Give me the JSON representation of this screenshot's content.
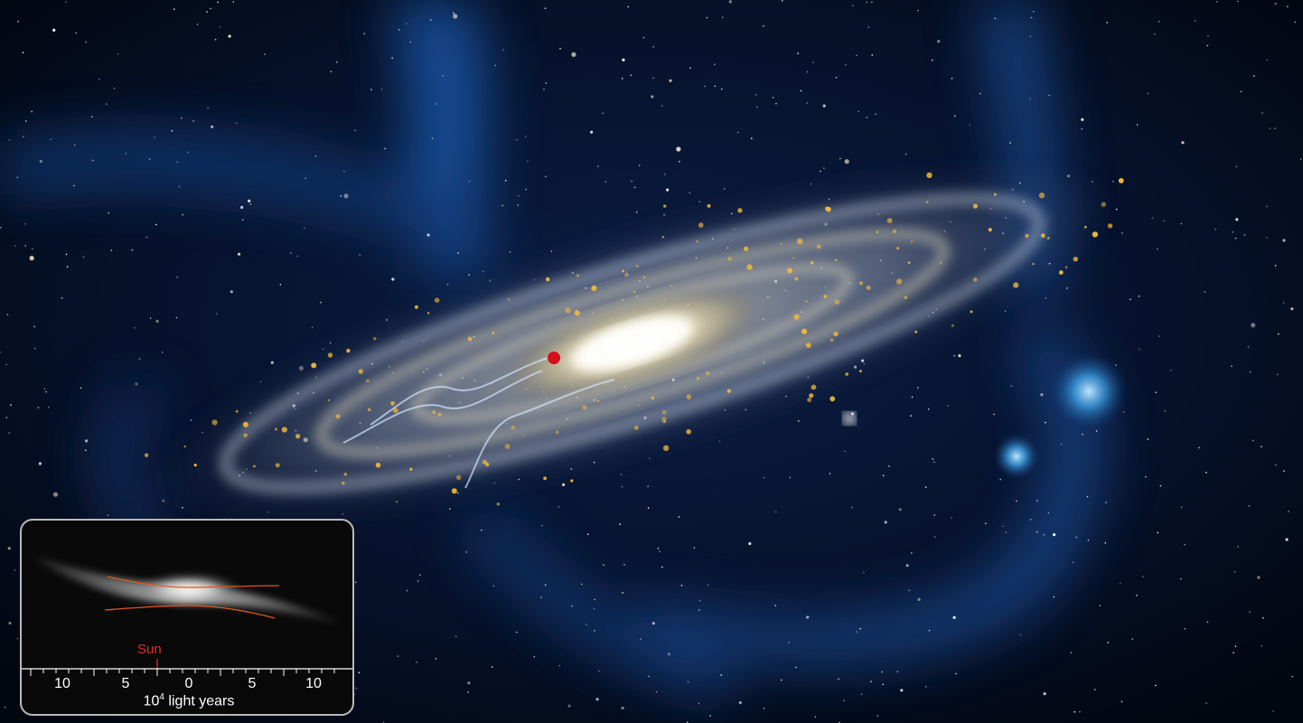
{
  "inset": {
    "sun_label": "Sun",
    "axis_ticks": [
      "10",
      "5",
      "0",
      "5",
      "10"
    ],
    "axis_title_base": "10",
    "axis_title_exponent": "4",
    "axis_title_rest": " light years"
  },
  "colors": {
    "space": "#020612",
    "nebula_blue": "#1c4f9c",
    "galaxy_core": "#fff8dc",
    "sun_marker": "#d0101a",
    "warp_lines": "#e2571e"
  }
}
